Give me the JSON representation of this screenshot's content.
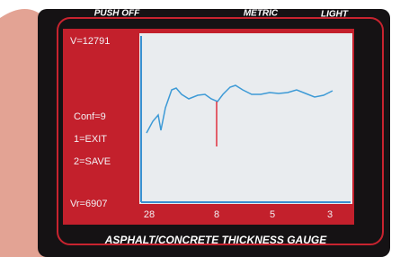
{
  "device": {
    "buttons": [
      "PUSH OFF",
      "METRIC",
      "LIGHT"
    ],
    "title": "ASPHALT/CONCRETE THICKNESS GAUGE"
  },
  "screen": {
    "velocity": "V=12791",
    "confidence": "Conf=9",
    "menu": [
      "1=EXIT",
      "2=SAVE"
    ],
    "reference": "Vr=6907",
    "x_labels": [
      "28",
      "8",
      "5",
      "3"
    ]
  }
}
